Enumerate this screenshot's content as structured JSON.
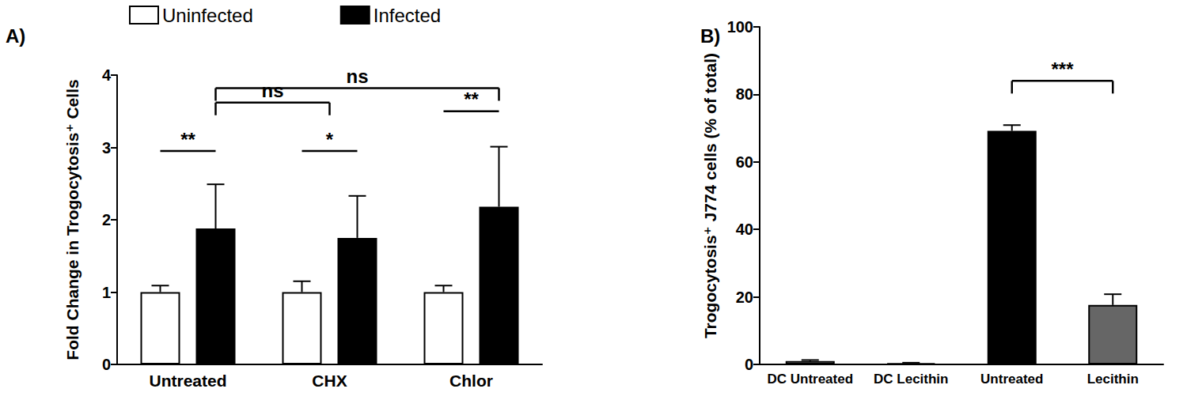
{
  "chart_data": [
    {
      "type": "bar",
      "title": "A)",
      "ylabel": "Fold Change in Trogocytosis⁺ Cells",
      "categories": [
        "Untreated",
        "CHX",
        "Chlor"
      ],
      "series": [
        {
          "name": "Uninfected",
          "color": "#ffffff",
          "values": [
            1.0,
            1.0,
            1.0
          ],
          "errors": [
            0.09,
            0.15,
            0.09
          ]
        },
        {
          "name": "Infected",
          "color": "#000000",
          "values": [
            1.88,
            1.75,
            2.18
          ],
          "errors": [
            0.61,
            0.58,
            0.83
          ]
        }
      ],
      "ylim": [
        0,
        4
      ],
      "yticks": [
        0,
        1,
        2,
        3,
        4
      ],
      "grid": false,
      "legend": "top",
      "annotations": [
        {
          "text": "**",
          "from": {
            "category": "Untreated",
            "series": "Uninfected"
          },
          "to": {
            "category": "Untreated",
            "series": "Infected"
          },
          "y": 2.95
        },
        {
          "text": "*",
          "from": {
            "category": "CHX",
            "series": "Uninfected"
          },
          "to": {
            "category": "CHX",
            "series": "Infected"
          },
          "y": 2.95
        },
        {
          "text": "**",
          "from": {
            "category": "Chlor",
            "series": "Uninfected"
          },
          "to": {
            "category": "Chlor",
            "series": "Infected"
          },
          "y": 3.5
        },
        {
          "text": "ns",
          "from": {
            "category": "Untreated",
            "series": "Infected"
          },
          "to": {
            "category": "CHX"
          },
          "y": 3.62
        },
        {
          "text": "ns",
          "from": {
            "category": "Untreated",
            "series": "Infected"
          },
          "to": {
            "category": "Chlor",
            "series": "Infected"
          },
          "y": 3.82
        }
      ]
    },
    {
      "type": "bar",
      "title": "B)",
      "ylabel": "Trogocytosis⁺ J774 cells (% of total)",
      "categories": [
        "DC Untreated",
        "DC Lecithin",
        "Untreated",
        "Lecithin"
      ],
      "values": [
        1.0,
        0.4,
        69.2,
        17.6
      ],
      "errors": [
        0.3,
        0.1,
        1.7,
        3.2
      ],
      "colors": [
        "#d0d0d0",
        "#d0d0d0",
        "#000000",
        "#666666"
      ],
      "ylim": [
        0,
        100
      ],
      "yticks": [
        0,
        20,
        40,
        60,
        80,
        100
      ],
      "grid": false,
      "annotations": [
        {
          "text": "***",
          "from": {
            "category": "Untreated"
          },
          "to": {
            "category": "Lecithin"
          },
          "y": 84
        }
      ]
    }
  ]
}
